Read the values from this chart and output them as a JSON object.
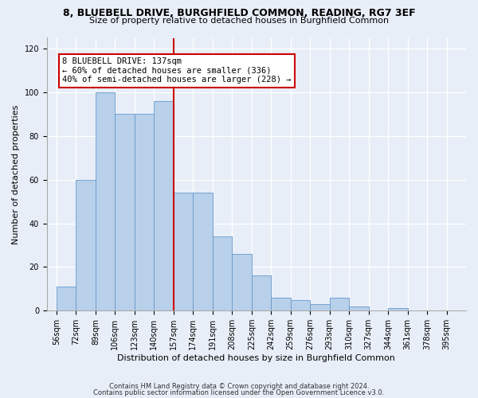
{
  "title1": "8, BLUEBELL DRIVE, BURGHFIELD COMMON, READING, RG7 3EF",
  "title2": "Size of property relative to detached houses in Burghfield Common",
  "xlabel": "Distribution of detached houses by size in Burghfield Common",
  "ylabel": "Number of detached properties",
  "footnote1": "Contains HM Land Registry data © Crown copyright and database right 2024.",
  "footnote2": "Contains public sector information licensed under the Open Government Licence v3.0.",
  "bin_labels": [
    "56sqm",
    "72sqm",
    "89sqm",
    "106sqm",
    "123sqm",
    "140sqm",
    "157sqm",
    "174sqm",
    "191sqm",
    "208sqm",
    "225sqm",
    "242sqm",
    "259sqm",
    "276sqm",
    "293sqm",
    "310sqm",
    "327sqm",
    "344sqm",
    "361sqm",
    "378sqm",
    "395sqm"
  ],
  "bar_values": [
    11,
    60,
    100,
    90,
    90,
    96,
    54,
    54,
    34,
    26,
    16,
    6,
    5,
    3,
    6,
    2,
    0,
    1,
    0,
    0,
    0
  ],
  "bar_color": "#b8d0ea",
  "bar_edgecolor": "#6699cc",
  "annotation_text": "8 BLUEBELL DRIVE: 137sqm\n← 60% of detached houses are smaller (336)\n40% of semi-detached houses are larger (228) →",
  "vline_color": "#cc0000",
  "vline_x_bin": 5,
  "ylim": [
    0,
    125
  ],
  "yticks": [
    0,
    20,
    40,
    60,
    80,
    100,
    120
  ],
  "background_color": "#e8eef8",
  "plot_bg_color": "#e8eef8",
  "grid_color": "#ffffff",
  "annotation_box_color": "#ffffff",
  "annotation_box_edge": "#cc0000",
  "title1_fontsize": 9,
  "title2_fontsize": 8,
  "xlabel_fontsize": 8,
  "ylabel_fontsize": 8,
  "tick_fontsize": 7,
  "footnote_fontsize": 6
}
